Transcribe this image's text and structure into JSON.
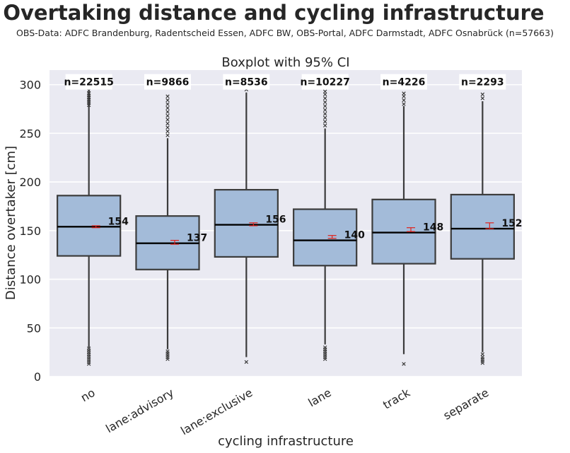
{
  "title": "Overtaking distance and cycling infrastructure",
  "subtitle": "OBS-Data: ADFC Brandenburg, Radentscheid Essen, ADFC BW, OBS-Portal, ADFC Darmstadt, ADFC Osnabrück  (n=57663)",
  "chart_data": {
    "type": "box",
    "title": "Boxplot with 95% CI",
    "xlabel": "cycling infrastructure",
    "ylabel": "Distance overtaker [cm]",
    "ylim": [
      0,
      315
    ],
    "yticks": [
      0,
      50,
      100,
      150,
      200,
      250,
      300
    ],
    "categories": [
      "no",
      "lane:advisory",
      "lane:exclusive",
      "lane",
      "track",
      "separate"
    ],
    "counts": [
      "n=22515",
      "n=9866",
      "n=8536",
      "n=10227",
      "n=4226",
      "n=2293"
    ],
    "median_labels": [
      "154",
      "137",
      "156",
      "140",
      "148",
      "152"
    ],
    "boxes": [
      {
        "q1": 124,
        "median": 154,
        "q3": 186,
        "whisker_low": 30,
        "whisker_high": 293,
        "ci_low": 153,
        "ci_high": 155,
        "outliers_low": [
          29,
          27,
          25,
          23,
          21,
          19,
          17,
          15,
          13
        ],
        "outliers_high": [
          294,
          291,
          289,
          287,
          285,
          283,
          281,
          279
        ]
      },
      {
        "q1": 110,
        "median": 137,
        "q3": 165,
        "whisker_low": 28,
        "whisker_high": 245,
        "ci_low": 136,
        "ci_high": 140,
        "outliers_low": [
          26,
          24,
          22,
          20,
          18
        ],
        "outliers_high": [
          248,
          252,
          256,
          260,
          264,
          268,
          272,
          276,
          280,
          284,
          288
        ]
      },
      {
        "q1": 123,
        "median": 156,
        "q3": 192,
        "whisker_low": 20,
        "whisker_high": 292,
        "ci_low": 155,
        "ci_high": 158,
        "outliers_low": [
          15
        ],
        "outliers_high": [
          295
        ]
      },
      {
        "q1": 114,
        "median": 140,
        "q3": 172,
        "whisker_low": 33,
        "whisker_high": 255,
        "ci_low": 142,
        "ci_high": 145,
        "outliers_low": [
          30,
          28,
          26,
          24,
          22,
          20,
          18
        ],
        "outliers_high": [
          258,
          262,
          266,
          270,
          274,
          278,
          282,
          286,
          290,
          293
        ]
      },
      {
        "q1": 116,
        "median": 148,
        "q3": 182,
        "whisker_low": 23,
        "whisker_high": 278,
        "ci_low": 149,
        "ci_high": 153,
        "outliers_low": [
          13
        ],
        "outliers_high": [
          280,
          284,
          288,
          291
        ]
      },
      {
        "q1": 121,
        "median": 152,
        "q3": 187,
        "whisker_low": 25,
        "whisker_high": 283,
        "ci_low": 152,
        "ci_high": 158,
        "outliers_low": [
          23,
          20,
          18,
          16,
          14
        ],
        "outliers_high": [
          286,
          290
        ]
      }
    ],
    "grid": true,
    "colors": {
      "box_fill": "#a3bbd9",
      "box_edge": "#3c3c3c",
      "median": "#000000",
      "ci": "#e0221c",
      "background": "#eaeaf2",
      "grid": "#ffffff"
    }
  }
}
